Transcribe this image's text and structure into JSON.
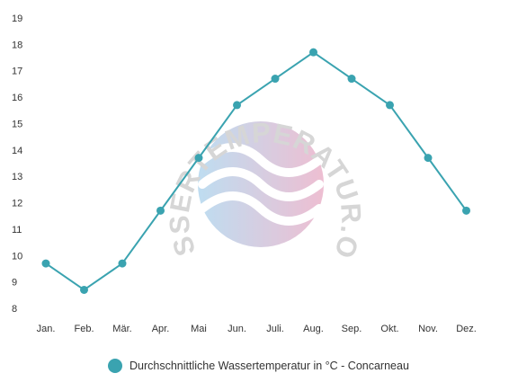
{
  "chart_data": {
    "type": "line",
    "categories": [
      "Jan.",
      "Feb.",
      "Mär.",
      "Apr.",
      "Mai",
      "Jun.",
      "Juli.",
      "Aug.",
      "Sep.",
      "Okt.",
      "Nov.",
      "Dez."
    ],
    "series": [
      {
        "name": "Durchschnittliche Wassertemperatur in °C - Concarneau",
        "values": [
          9.7,
          8.7,
          9.7,
          11.7,
          13.7,
          15.7,
          16.7,
          17.7,
          16.7,
          15.7,
          13.7,
          11.7
        ]
      }
    ],
    "y_ticks": [
      "8",
      "9",
      "10",
      "11",
      "12",
      "13",
      "14",
      "15",
      "16",
      "17",
      "18",
      "19"
    ],
    "ylim": [
      8,
      19
    ],
    "grid": false,
    "legend_position": "bottom",
    "title": "",
    "xlabel": "",
    "ylabel": ""
  },
  "legend": {
    "label": "Durchschnittliche Wassertemperatur in °C - Concarneau"
  },
  "watermark": {
    "text": "WASSERTEMPERATUR.ORG"
  },
  "colors": {
    "line": "#3aa3b0",
    "marker": "#3aa3b0",
    "watermark_blue": "#a9d2ec",
    "watermark_pink": "#e8a9c3"
  }
}
